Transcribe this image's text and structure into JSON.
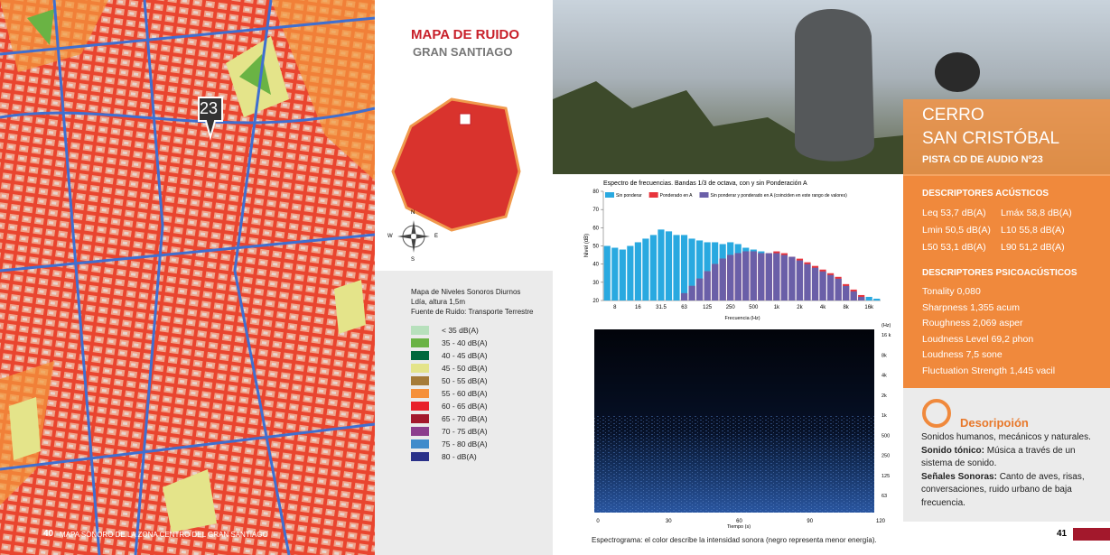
{
  "map_page": {
    "marker": "23",
    "footer_page": "40",
    "footer_text": "MAPA SONORO DE LA ZONA CENTRO DEL GRAN SANTIAGO"
  },
  "side_panel": {
    "title": "MAPA DE RUIDO",
    "subtitle": "GRAN SANTIAGO",
    "compass": {
      "n": "N",
      "e": "E",
      "s": "S",
      "w": "W"
    },
    "legend_heading": [
      "Mapa de Niveles Sonoros Diurnos",
      "Ldía, altura 1,5m",
      "Fuente de Ruido: Transporte Terrestre"
    ],
    "legend": [
      {
        "label": "< 35 dB(A)",
        "color": "#b7e0bc"
      },
      {
        "label": "35 - 40 dB(A)",
        "color": "#6ab344"
      },
      {
        "label": "40 - 45 dB(A)",
        "color": "#00683c"
      },
      {
        "label": "45 - 50 dB(A)",
        "color": "#e4e48a"
      },
      {
        "label": "50 - 55 dB(A)",
        "color": "#a57b38"
      },
      {
        "label": "55 - 60 dB(A)",
        "color": "#f5903a"
      },
      {
        "label": "60 - 65 dB(A)",
        "color": "#e8202a"
      },
      {
        "label": "65 - 70 dB(A)",
        "color": "#a3182c"
      },
      {
        "label": "70 - 75 dB(A)",
        "color": "#8c3e8d"
      },
      {
        "label": "75 - 80 dB(A)",
        "color": "#3f8bcb"
      },
      {
        "label": "80 - dB(A)",
        "color": "#2a3189"
      }
    ]
  },
  "chart_data": {
    "type": "bar",
    "title": "Espectro de frecuencias. Bandas 1/3 de octava, con y sin Ponderación A",
    "x_label": "Frecuencia (Hz)",
    "y_label": "Nivel (dB)",
    "categories": [
      null,
      "8",
      null,
      null,
      "16",
      null,
      null,
      "31.5",
      null,
      null,
      "63",
      null,
      null,
      "125",
      null,
      null,
      "250",
      null,
      null,
      "500",
      null,
      null,
      "1k",
      null,
      null,
      "2k",
      null,
      null,
      "4k",
      null,
      null,
      "8k",
      null,
      null,
      "16k",
      null
    ],
    "series": [
      {
        "name": "Sin ponderar",
        "color": "#29a9e0",
        "values": [
          50,
          49,
          48,
          50,
          52,
          54,
          56,
          59,
          58,
          56,
          56,
          54,
          53,
          52,
          52,
          51,
          52,
          51,
          49,
          48,
          47,
          46,
          46,
          45,
          44,
          42,
          40,
          38,
          36,
          34,
          32,
          28,
          25,
          22,
          22,
          21
        ]
      },
      {
        "name": "Ponderado en A",
        "color": "#e8343c",
        "values": [
          null,
          null,
          null,
          null,
          null,
          null,
          null,
          null,
          null,
          null,
          24,
          28,
          32,
          36,
          40,
          43,
          45,
          46,
          47,
          47,
          46,
          46,
          47,
          46,
          44,
          43,
          41,
          39,
          37,
          35,
          33,
          29,
          26,
          23,
          null,
          null
        ]
      }
    ],
    "overlap_label": "Sin ponderar y ponderado en A (coinciden en este rango de valores)",
    "overlap_color": "#6a5fa8",
    "ylim": [
      20,
      80
    ],
    "yticks": [
      20,
      30,
      40,
      50,
      60,
      70,
      80
    ]
  },
  "spectrogram": {
    "unit": "(Hz)",
    "y_labels": [
      "16 k",
      "8k",
      "4k",
      "2k",
      "1k",
      "500",
      "250",
      "125",
      "63"
    ],
    "x_labels": [
      "0",
      "30",
      "60",
      "90",
      "120"
    ],
    "x_title": "Tiempo (s)",
    "caption": "Espectrograma: el color describe la intensidad sonora (negro representa menor energía)."
  },
  "info": {
    "title_1": "CERRO",
    "title_2": "SAN CRISTÓBAL",
    "track": "PISTA CD DE AUDIO Nº23",
    "acoustic_heading": "DESCRIPTORES ACÚSTICOS",
    "acoustic": [
      [
        "Leq 53,7 dB(A)",
        "Lmáx 58,8 dB(A)"
      ],
      [
        "Lmin 50,5 dB(A)",
        "L10 55,8 dB(A)"
      ],
      [
        "L50 53,1 dB(A)",
        "L90 51,2 dB(A)"
      ]
    ],
    "psycho_heading": "DESCRIPTORES PSICOACÚSTICOS",
    "psycho": [
      "Tonality 0,080",
      "Sharpness 1,355 acum",
      "Roughness 2,069 asper",
      "Loudness Level 69,2 phon",
      "Loudness 7,5 sone",
      "Fluctuation Strength 1,445 vacil"
    ],
    "desc_heading": "Desoripoión",
    "desc_1": "Sonidos humanos, mecánicos y naturales.",
    "desc_2_bold": "Sonido tónico:",
    "desc_2": " Música a través de un sistema de sonido.",
    "desc_3_bold": "Señales Sonoras:",
    "desc_3": " Canto de aves, risas, conversaciones, ruido urbano de baja frecuencia.",
    "page": "41"
  }
}
